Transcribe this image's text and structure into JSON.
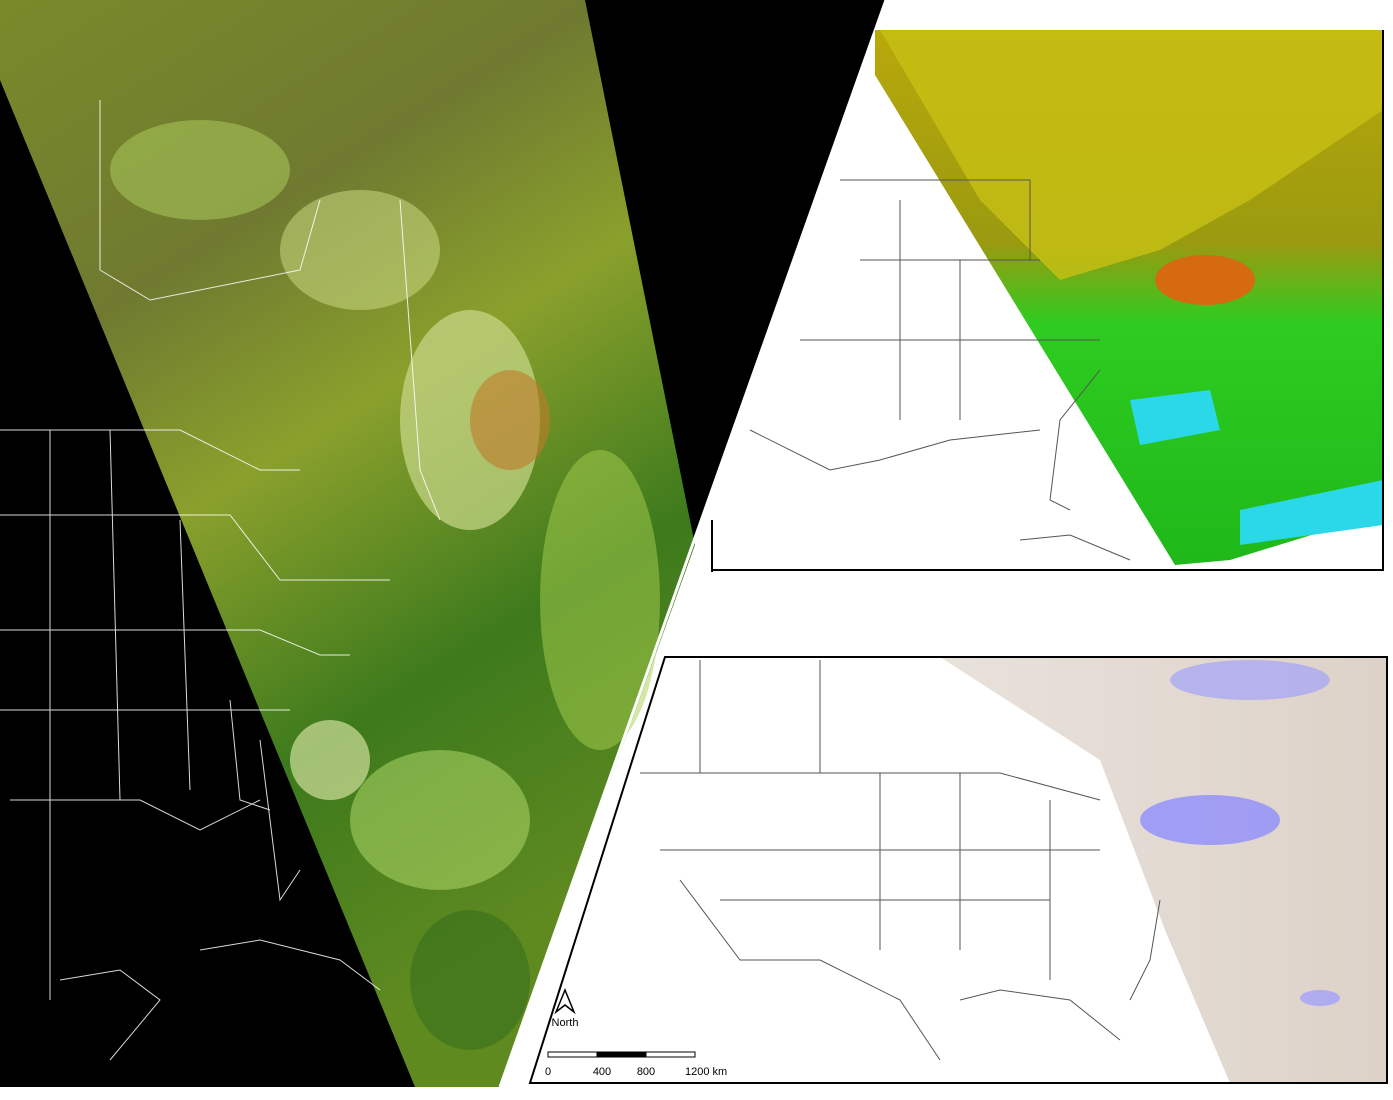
{
  "north_arrow": {
    "label": "North"
  },
  "scale_bar": {
    "labels": [
      "0",
      "400",
      "800",
      "1200 km"
    ]
  }
}
